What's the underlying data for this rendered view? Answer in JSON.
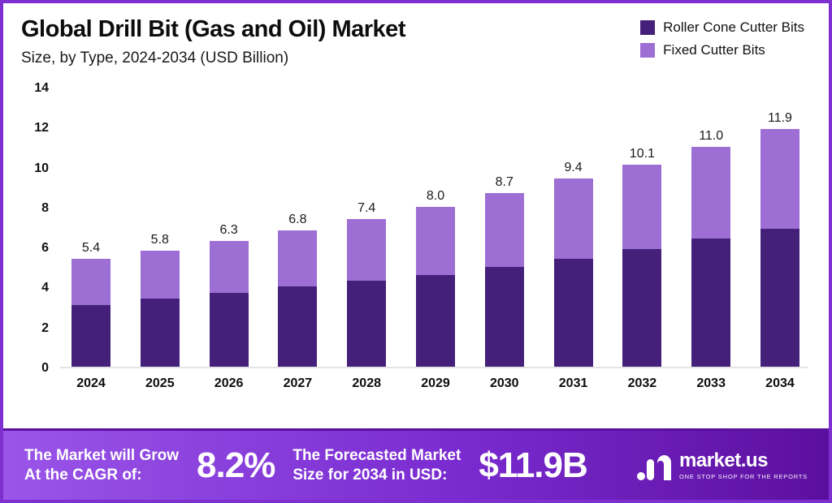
{
  "header": {
    "title": "Global Drill Bit (Gas and Oil) Market",
    "subtitle": "Size, by Type, 2024-2034 (USD Billion)"
  },
  "legend": {
    "items": [
      {
        "label": "Roller Cone Cutter Bits",
        "color": "#45207b"
      },
      {
        "label": "Fixed Cutter Bits",
        "color": "#9d6fd4"
      }
    ]
  },
  "chart_data": {
    "type": "bar",
    "stacked": true,
    "title": "Global Drill Bit (Gas and Oil) Market Size, by Type, 2024-2034 (USD Billion)",
    "categories": [
      "2024",
      "2025",
      "2026",
      "2027",
      "2028",
      "2029",
      "2030",
      "2031",
      "2032",
      "2033",
      "2034"
    ],
    "series": [
      {
        "name": "Roller Cone Cutter Bits",
        "color": "#45207b",
        "values": [
          3.1,
          3.4,
          3.7,
          4.0,
          4.3,
          4.6,
          5.0,
          5.4,
          5.9,
          6.4,
          6.9
        ]
      },
      {
        "name": "Fixed Cutter Bits",
        "color": "#9d6fd4",
        "values": [
          2.3,
          2.4,
          2.6,
          2.8,
          3.1,
          3.4,
          3.7,
          4.0,
          4.2,
          4.6,
          5.0
        ]
      }
    ],
    "totals": [
      5.4,
      5.8,
      6.3,
      6.8,
      7.4,
      8.0,
      8.7,
      9.4,
      10.1,
      11.0,
      11.9
    ],
    "total_labels": [
      "5.4",
      "5.8",
      "6.3",
      "6.8",
      "7.4",
      "8.0",
      "8.7",
      "9.4",
      "10.1",
      "11.0",
      "11.9"
    ],
    "xlabel": "",
    "ylabel": "",
    "ylim": [
      0,
      14
    ],
    "yticks": [
      0,
      2,
      4,
      6,
      8,
      10,
      12,
      14
    ],
    "grid": false,
    "legend_position": "top-right"
  },
  "banner": {
    "cagr_line1": "The Market will Grow",
    "cagr_line2": "At the CAGR of:",
    "cagr_value": "8.2%",
    "forecast_line1": "The Forecasted Market",
    "forecast_line2": "Size for 2034 in USD:",
    "forecast_value": "$11.9B",
    "brand": "market.us",
    "brand_tagline": "ONE STOP SHOP FOR THE REPORTS"
  }
}
